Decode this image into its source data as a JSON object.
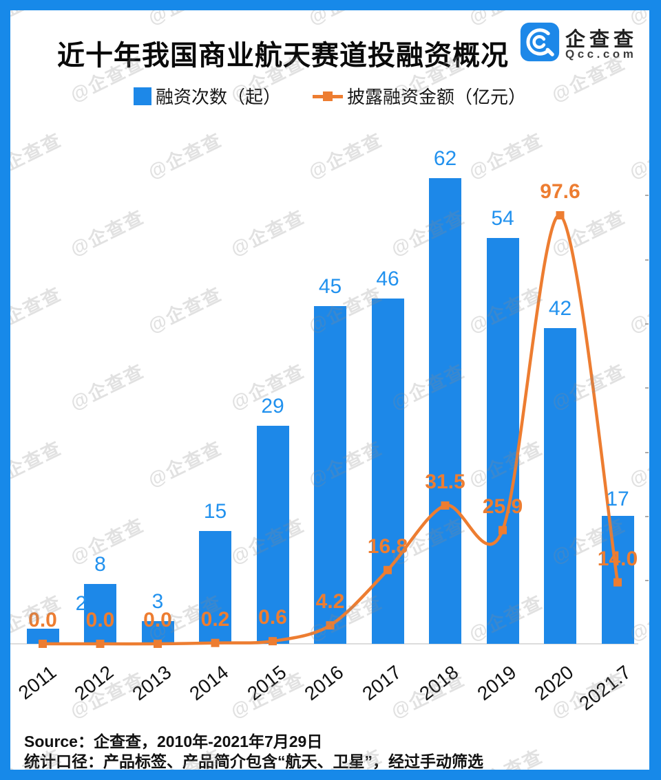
{
  "header": {
    "title": "近十年我国商业航天赛道投融资概况",
    "logo": {
      "brand_cn": "企查查",
      "brand_domain": "Qcc.com"
    }
  },
  "legend": {
    "bar_label": "融资次数（起）",
    "line_label": "披露融资金额（亿元）"
  },
  "chart_data": {
    "type": "bar",
    "subtype": "bar+line combo",
    "title": "近十年我国商业航天赛道投融资概况",
    "categories": [
      "2011",
      "2012",
      "2013",
      "2014",
      "2015",
      "2016",
      "2017",
      "2018",
      "2019",
      "2020",
      "2021.7"
    ],
    "series": [
      {
        "name": "融资次数（起）",
        "type": "bar",
        "color": "#1D88E8",
        "values": [
          2,
          8,
          3,
          15,
          29,
          45,
          46,
          62,
          54,
          42,
          17
        ]
      },
      {
        "name": "披露融资金额（亿元）",
        "type": "line",
        "color": "#ED7D31",
        "values": [
          0.0,
          0.0,
          0.0,
          0.2,
          0.6,
          4.2,
          16.8,
          31.5,
          25.9,
          97.6,
          14.0
        ],
        "value_labels": [
          "0.0",
          "0.0",
          "0.0",
          "0.2",
          "0.6",
          "4.2",
          "16.8",
          "31.5",
          "25.9",
          "97.6",
          "14.0"
        ]
      }
    ],
    "xlabel": "",
    "ylabel": "",
    "legend_position": "top",
    "grid": false,
    "bar_axis_range": [
      0,
      70
    ],
    "line_axis_range": [
      0,
      110
    ]
  },
  "footer": {
    "source": "Source：企查查，2010年-2021年7月29日",
    "caliber": "统计口径：产品标签、产品简介包含“航天、卫星”，经过手动筛选"
  },
  "watermark": {
    "text": "@企查查"
  },
  "colors": {
    "bar_blue": "#1D88E8",
    "label_blue": "#2191EE",
    "line_orange": "#ED7D31",
    "frame_blue": "#1789E9",
    "axis_line": "#DCDCDC",
    "title_text": "#0A0A0A"
  }
}
